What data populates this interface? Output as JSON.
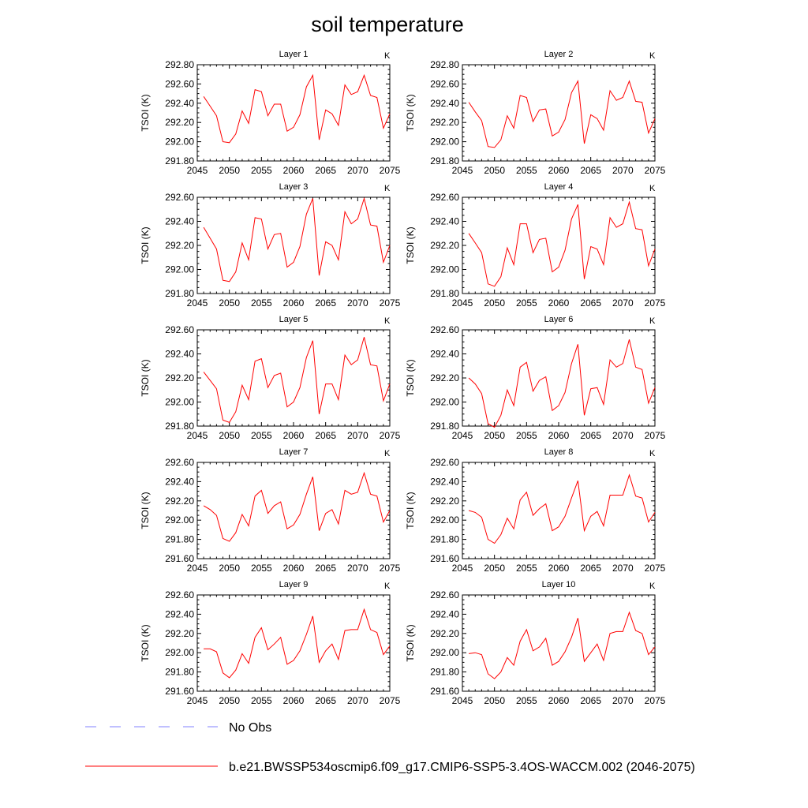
{
  "figure": {
    "title": "soil temperature"
  },
  "chart_data": [
    {
      "type": "line",
      "title": "Layer 1",
      "units": "K",
      "ylabel": "TSOI  (K)",
      "xlim": [
        2045,
        2075
      ],
      "ylim": [
        291.8,
        292.8
      ],
      "xticks": [
        "2045",
        "2050",
        "2055",
        "2060",
        "2065",
        "2070",
        "2075"
      ],
      "yticks": [
        "291.80",
        "292.00",
        "292.20",
        "292.40",
        "292.60",
        "292.80"
      ],
      "x": [
        2046,
        2047,
        2048,
        2049,
        2050,
        2051,
        2052,
        2053,
        2054,
        2055,
        2056,
        2057,
        2058,
        2059,
        2060,
        2061,
        2062,
        2063,
        2064,
        2065,
        2066,
        2067,
        2068,
        2069,
        2070,
        2071,
        2072,
        2073,
        2074,
        2075
      ],
      "series": [
        {
          "values": [
            292.47,
            292.37,
            292.27,
            292.0,
            291.99,
            292.08,
            292.32,
            292.19,
            292.54,
            292.52,
            292.27,
            292.39,
            292.39,
            292.11,
            292.15,
            292.28,
            292.57,
            292.69,
            292.02,
            292.33,
            292.29,
            292.17,
            292.59,
            292.49,
            292.52,
            292.69,
            292.48,
            292.46,
            292.14,
            292.29
          ],
          "color": "#ff0000"
        }
      ]
    },
    {
      "type": "line",
      "title": "Layer 2",
      "units": "K",
      "ylabel": "TSOI  (K)",
      "xlim": [
        2045,
        2075
      ],
      "ylim": [
        291.8,
        292.8
      ],
      "xticks": [
        "2045",
        "2050",
        "2055",
        "2060",
        "2065",
        "2070",
        "2075"
      ],
      "yticks": [
        "291.80",
        "292.00",
        "292.20",
        "292.40",
        "292.60",
        "292.80"
      ],
      "x": [
        2046,
        2047,
        2048,
        2049,
        2050,
        2051,
        2052,
        2053,
        2054,
        2055,
        2056,
        2057,
        2058,
        2059,
        2060,
        2061,
        2062,
        2063,
        2064,
        2065,
        2066,
        2067,
        2068,
        2069,
        2070,
        2071,
        2072,
        2073,
        2074,
        2075
      ],
      "series": [
        {
          "values": [
            292.41,
            292.31,
            292.22,
            291.95,
            291.94,
            292.02,
            292.27,
            292.14,
            292.48,
            292.46,
            292.21,
            292.33,
            292.34,
            292.06,
            292.1,
            292.23,
            292.51,
            292.63,
            291.98,
            292.28,
            292.24,
            292.12,
            292.53,
            292.43,
            292.46,
            292.63,
            292.42,
            292.41,
            292.09,
            292.24
          ],
          "color": "#ff0000"
        }
      ]
    },
    {
      "type": "line",
      "title": "Layer 3",
      "units": "K",
      "ylabel": "TSOI  (K)",
      "xlim": [
        2045,
        2075
      ],
      "ylim": [
        291.8,
        292.6
      ],
      "xticks": [
        "2045",
        "2050",
        "2055",
        "2060",
        "2065",
        "2070",
        "2075"
      ],
      "yticks": [
        "291.80",
        "292.00",
        "292.20",
        "292.40",
        "292.60"
      ],
      "x": [
        2046,
        2047,
        2048,
        2049,
        2050,
        2051,
        2052,
        2053,
        2054,
        2055,
        2056,
        2057,
        2058,
        2059,
        2060,
        2061,
        2062,
        2063,
        2064,
        2065,
        2066,
        2067,
        2068,
        2069,
        2070,
        2071,
        2072,
        2073,
        2074,
        2075
      ],
      "series": [
        {
          "values": [
            292.35,
            292.26,
            292.17,
            291.91,
            291.9,
            291.98,
            292.22,
            292.08,
            292.43,
            292.42,
            292.17,
            292.29,
            292.3,
            292.02,
            292.06,
            292.19,
            292.46,
            292.59,
            291.95,
            292.23,
            292.2,
            292.08,
            292.48,
            292.38,
            292.42,
            292.59,
            292.37,
            292.36,
            292.06,
            292.2
          ],
          "color": "#ff0000"
        }
      ]
    },
    {
      "type": "line",
      "title": "Layer 4",
      "units": "K",
      "ylabel": "TSOI  (K)",
      "xlim": [
        2045,
        2075
      ],
      "ylim": [
        291.8,
        292.6
      ],
      "xticks": [
        "2045",
        "2050",
        "2055",
        "2060",
        "2065",
        "2070",
        "2075"
      ],
      "yticks": [
        "291.80",
        "292.00",
        "292.20",
        "292.40",
        "292.60"
      ],
      "x": [
        2046,
        2047,
        2048,
        2049,
        2050,
        2051,
        2052,
        2053,
        2054,
        2055,
        2056,
        2057,
        2058,
        2059,
        2060,
        2061,
        2062,
        2063,
        2064,
        2065,
        2066,
        2067,
        2068,
        2069,
        2070,
        2071,
        2072,
        2073,
        2074,
        2075
      ],
      "series": [
        {
          "values": [
            292.3,
            292.22,
            292.14,
            291.88,
            291.86,
            291.94,
            292.18,
            292.04,
            292.38,
            292.38,
            292.14,
            292.25,
            292.26,
            291.98,
            292.02,
            292.16,
            292.42,
            292.54,
            291.92,
            292.19,
            292.17,
            292.04,
            292.43,
            292.35,
            292.38,
            292.56,
            292.34,
            292.33,
            292.03,
            292.17
          ],
          "color": "#ff0000"
        }
      ]
    },
    {
      "type": "line",
      "title": "Layer 5",
      "units": "K",
      "ylabel": "TSOI  (K)",
      "xlim": [
        2045,
        2075
      ],
      "ylim": [
        291.8,
        292.6
      ],
      "xticks": [
        "2045",
        "2050",
        "2055",
        "2060",
        "2065",
        "2070",
        "2075"
      ],
      "yticks": [
        "291.80",
        "292.00",
        "292.20",
        "292.40",
        "292.60"
      ],
      "x": [
        2046,
        2047,
        2048,
        2049,
        2050,
        2051,
        2052,
        2053,
        2054,
        2055,
        2056,
        2057,
        2058,
        2059,
        2060,
        2061,
        2062,
        2063,
        2064,
        2065,
        2066,
        2067,
        2068,
        2069,
        2070,
        2071,
        2072,
        2073,
        2074,
        2075
      ],
      "series": [
        {
          "values": [
            292.25,
            292.18,
            292.11,
            291.85,
            291.83,
            291.92,
            292.14,
            292.02,
            292.34,
            292.36,
            292.12,
            292.22,
            292.24,
            291.96,
            292.0,
            292.12,
            292.37,
            292.51,
            291.9,
            292.15,
            292.15,
            292.02,
            292.39,
            292.31,
            292.35,
            292.54,
            292.31,
            292.3,
            292.01,
            292.15
          ],
          "color": "#ff0000"
        }
      ]
    },
    {
      "type": "line",
      "title": "Layer 6",
      "units": "K",
      "ylabel": "TSOI  (K)",
      "xlim": [
        2045,
        2075
      ],
      "ylim": [
        291.8,
        292.6
      ],
      "xticks": [
        "2045",
        "2050",
        "2055",
        "2060",
        "2065",
        "2070",
        "2075"
      ],
      "yticks": [
        "291.80",
        "292.00",
        "292.20",
        "292.40",
        "292.60"
      ],
      "x": [
        2046,
        2047,
        2048,
        2049,
        2050,
        2051,
        2052,
        2053,
        2054,
        2055,
        2056,
        2057,
        2058,
        2059,
        2060,
        2061,
        2062,
        2063,
        2064,
        2065,
        2066,
        2067,
        2068,
        2069,
        2070,
        2071,
        2072,
        2073,
        2074,
        2075
      ],
      "series": [
        {
          "values": [
            292.2,
            292.15,
            292.07,
            291.82,
            291.79,
            291.89,
            292.1,
            291.97,
            292.29,
            292.33,
            292.09,
            292.18,
            292.21,
            291.93,
            291.97,
            292.08,
            292.32,
            292.48,
            291.89,
            292.11,
            292.12,
            291.98,
            292.35,
            292.29,
            292.32,
            292.52,
            292.29,
            292.27,
            291.99,
            292.12
          ],
          "color": "#ff0000"
        }
      ]
    },
    {
      "type": "line",
      "title": "Layer 7",
      "units": "K",
      "ylabel": "TSOI  (K)",
      "xlim": [
        2045,
        2075
      ],
      "ylim": [
        291.6,
        292.6
      ],
      "xticks": [
        "2045",
        "2050",
        "2055",
        "2060",
        "2065",
        "2070",
        "2075"
      ],
      "yticks": [
        "291.60",
        "291.80",
        "292.00",
        "292.20",
        "292.40",
        "292.60"
      ],
      "x": [
        2046,
        2047,
        2048,
        2049,
        2050,
        2051,
        2052,
        2053,
        2054,
        2055,
        2056,
        2057,
        2058,
        2059,
        2060,
        2061,
        2062,
        2063,
        2064,
        2065,
        2066,
        2067,
        2068,
        2069,
        2070,
        2071,
        2072,
        2073,
        2074,
        2075
      ],
      "series": [
        {
          "values": [
            292.15,
            292.11,
            292.05,
            291.81,
            291.78,
            291.87,
            292.06,
            291.94,
            292.25,
            292.31,
            292.07,
            292.15,
            292.19,
            291.91,
            291.95,
            292.06,
            292.27,
            292.45,
            291.89,
            292.07,
            292.11,
            291.96,
            292.31,
            292.27,
            292.29,
            292.49,
            292.27,
            292.25,
            291.98,
            292.1
          ],
          "color": "#ff0000"
        }
      ]
    },
    {
      "type": "line",
      "title": "Layer 8",
      "units": "K",
      "ylabel": "TSOI  (K)",
      "xlim": [
        2045,
        2075
      ],
      "ylim": [
        291.6,
        292.6
      ],
      "xticks": [
        "2045",
        "2050",
        "2055",
        "2060",
        "2065",
        "2070",
        "2075"
      ],
      "yticks": [
        "291.60",
        "291.80",
        "292.00",
        "292.20",
        "292.40",
        "292.60"
      ],
      "x": [
        2046,
        2047,
        2048,
        2049,
        2050,
        2051,
        2052,
        2053,
        2054,
        2055,
        2056,
        2057,
        2058,
        2059,
        2060,
        2061,
        2062,
        2063,
        2064,
        2065,
        2066,
        2067,
        2068,
        2069,
        2070,
        2071,
        2072,
        2073,
        2074,
        2075
      ],
      "series": [
        {
          "values": [
            292.1,
            292.08,
            292.03,
            291.8,
            291.76,
            291.85,
            292.02,
            291.91,
            292.21,
            292.29,
            292.05,
            292.12,
            292.17,
            291.89,
            291.93,
            292.04,
            292.23,
            292.41,
            291.89,
            292.04,
            292.09,
            291.94,
            292.26,
            292.26,
            292.26,
            292.47,
            292.25,
            292.23,
            291.98,
            292.08
          ],
          "color": "#ff0000"
        }
      ]
    },
    {
      "type": "line",
      "title": "Layer 9",
      "units": "K",
      "ylabel": "TSOI  (K)",
      "xlim": [
        2045,
        2075
      ],
      "ylim": [
        291.6,
        292.6
      ],
      "xticks": [
        "2045",
        "2050",
        "2055",
        "2060",
        "2065",
        "2070",
        "2075"
      ],
      "yticks": [
        "291.60",
        "291.80",
        "292.00",
        "292.20",
        "292.40",
        "292.60"
      ],
      "x": [
        2046,
        2047,
        2048,
        2049,
        2050,
        2051,
        2052,
        2053,
        2054,
        2055,
        2056,
        2057,
        2058,
        2059,
        2060,
        2061,
        2062,
        2063,
        2064,
        2065,
        2066,
        2067,
        2068,
        2069,
        2070,
        2071,
        2072,
        2073,
        2074,
        2075
      ],
      "series": [
        {
          "values": [
            292.04,
            292.04,
            292.01,
            291.79,
            291.74,
            291.82,
            291.99,
            291.89,
            292.16,
            292.26,
            292.03,
            292.09,
            292.16,
            291.88,
            291.92,
            292.02,
            292.19,
            292.38,
            291.9,
            292.02,
            292.09,
            291.93,
            292.23,
            292.24,
            292.24,
            292.45,
            292.24,
            292.21,
            291.98,
            292.07
          ],
          "color": "#ff0000"
        }
      ]
    },
    {
      "type": "line",
      "title": "Layer 10",
      "units": "K",
      "ylabel": "TSOI  (K)",
      "xlim": [
        2045,
        2075
      ],
      "ylim": [
        291.6,
        292.6
      ],
      "xticks": [
        "2045",
        "2050",
        "2055",
        "2060",
        "2065",
        "2070",
        "2075"
      ],
      "yticks": [
        "291.60",
        "291.80",
        "292.00",
        "292.20",
        "292.40",
        "292.60"
      ],
      "x": [
        2046,
        2047,
        2048,
        2049,
        2050,
        2051,
        2052,
        2053,
        2054,
        2055,
        2056,
        2057,
        2058,
        2059,
        2060,
        2061,
        2062,
        2063,
        2064,
        2065,
        2066,
        2067,
        2068,
        2069,
        2070,
        2071,
        2072,
        2073,
        2074,
        2075
      ],
      "series": [
        {
          "values": [
            291.99,
            292.0,
            291.98,
            291.78,
            291.73,
            291.8,
            291.95,
            291.87,
            292.12,
            292.24,
            292.02,
            292.06,
            292.15,
            291.87,
            291.91,
            292.01,
            292.16,
            292.36,
            291.91,
            292.0,
            292.09,
            291.92,
            292.2,
            292.22,
            292.22,
            292.42,
            292.23,
            292.2,
            291.98,
            292.06
          ],
          "color": "#ff0000"
        }
      ]
    }
  ],
  "legend": {
    "items": [
      {
        "label": "No Obs",
        "color": "#8080ff",
        "style": "dashed"
      },
      {
        "label": "b.e21.BWSSP534oscmip6.f09_g17.CMIP6-SSP5-3.4OS-WACCM.002 (2046-2075)",
        "color": "#ff0000",
        "style": "solid"
      }
    ]
  }
}
